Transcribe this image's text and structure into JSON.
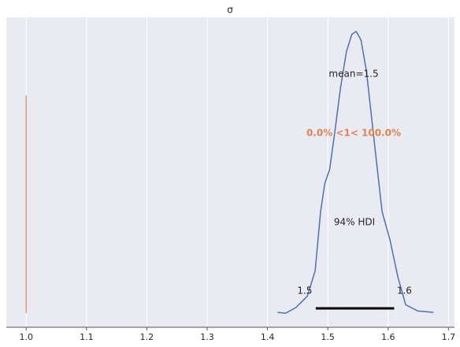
{
  "chart_data": {
    "type": "density",
    "title": "σ",
    "x": [
      1.4167,
      1.43,
      1.447,
      1.466,
      1.479,
      1.488,
      1.495,
      1.503,
      1.512,
      1.521,
      1.531,
      1.54,
      1.547,
      1.555,
      1.564,
      1.577,
      1.59,
      1.603,
      1.616,
      1.629,
      1.649,
      1.675
    ],
    "values": [
      0.03,
      0,
      0.2,
      0.6,
      1.5,
      3.6,
      4.6,
      5.1,
      6.5,
      8.0,
      9.3,
      9.9,
      10.0,
      9.7,
      8.6,
      6.1,
      3.6,
      2.6,
      1.3,
      0.3,
      0.08,
      0.03
    ],
    "color": "#4c72b0",
    "xlim": [
      0.967,
      1.71
    ],
    "ylim": [
      -0.5,
      10.5
    ],
    "xticks": [
      {
        "value": 1,
        "label": "1.0"
      },
      1.1,
      1.2,
      1.3,
      1.4,
      1.5,
      1.6,
      1.7
    ],
    "grid": true,
    "mean_label": "mean=1.5",
    "ref_val": 1,
    "ref_color": "#dd8452",
    "ref_label": "0.0% <1< 100.0%",
    "hdi": {
      "label": "94% HDI",
      "values": [
        1.48,
        1.61
      ],
      "value_labels": [
        "1.5",
        "1.6"
      ]
    }
  }
}
